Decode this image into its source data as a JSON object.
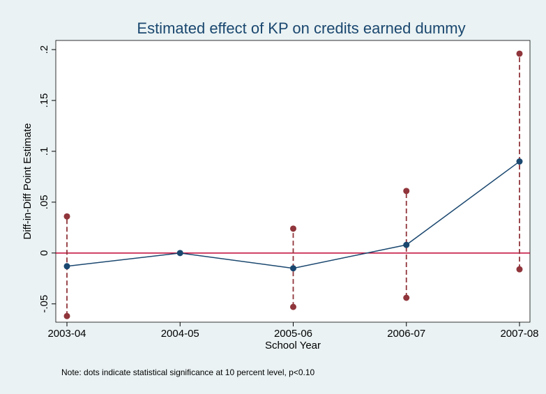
{
  "chart_data": {
    "type": "line",
    "title": "Estimated effect of  KP on credits earned dummy",
    "x_label": "School Year",
    "y_label": "Diff-in-Diff Point Estimate",
    "note": "Note: dots indicate statistical significance at 10 percent level, p<0.10",
    "categories": [
      "2003-04",
      "2004-05",
      "2005-06",
      "2006-07",
      "2007-08"
    ],
    "values": [
      -0.013,
      0,
      -0.015,
      0.008,
      0.09
    ],
    "ci_lower": [
      -0.062,
      null,
      -0.053,
      -0.044,
      -0.016
    ],
    "ci_upper": [
      0.036,
      null,
      0.024,
      0.061,
      0.196
    ],
    "color": "#1a476f",
    "ci_color": "#90353b",
    "refline": 0,
    "refline_color": "#c10534",
    "ylim": [
      -0.068,
      0.209
    ],
    "yticks": [
      {
        "value": -0.05,
        "label": "-.05"
      },
      0,
      {
        "value": 0.05,
        "label": ".05"
      },
      {
        "value": 0.1,
        "label": ".1"
      },
      {
        "value": 0.15,
        "label": ".15"
      },
      {
        "value": 0.2,
        "label": ".2"
      }
    ]
  }
}
